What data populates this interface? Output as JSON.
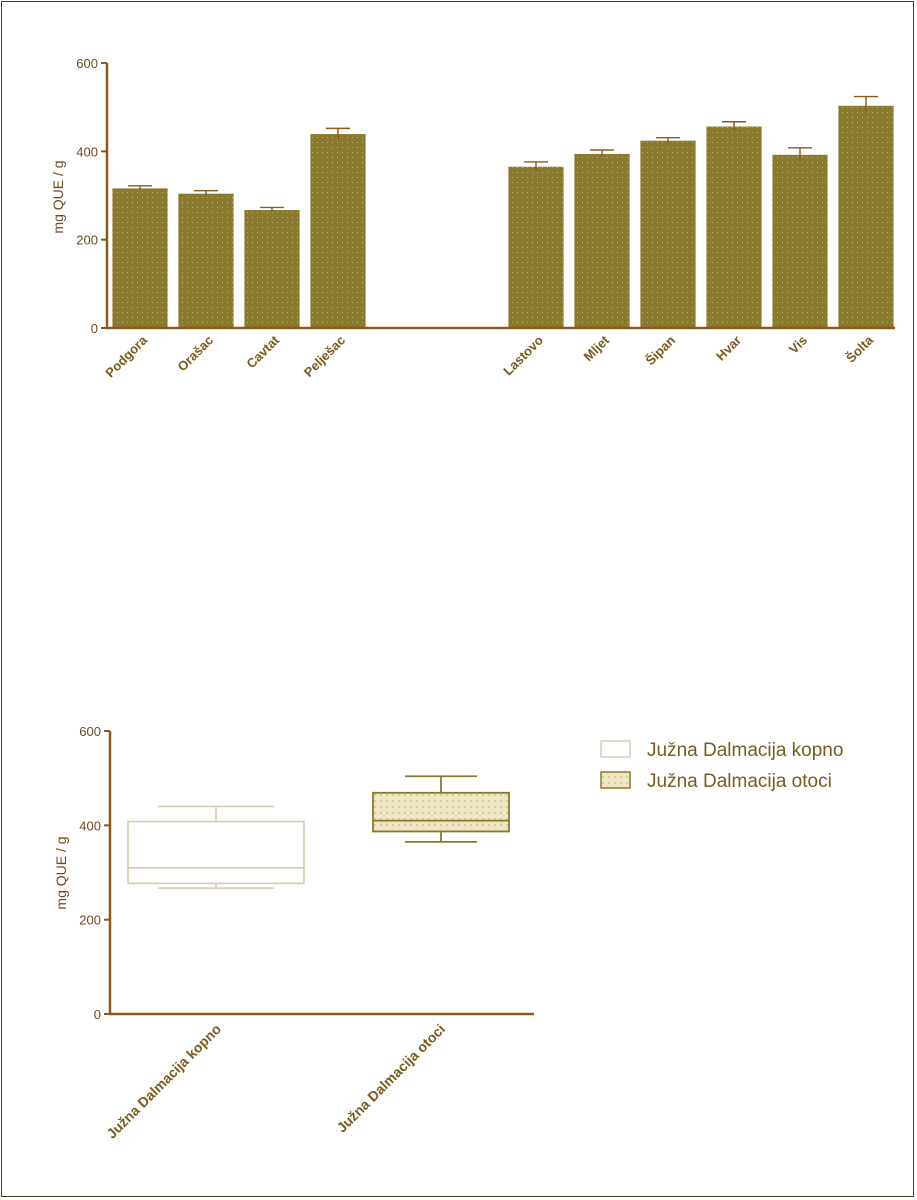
{
  "colors": {
    "bar_fill": "#8a7a2e",
    "bar_edge": "#ffffff",
    "axis": "#8b5a1b",
    "text": "#7a5a1c",
    "box_otoci_fill": "#ece3c0",
    "box_otoci_edge": "#8a7a2e",
    "box_kopno_edge": "#d9ceb0"
  },
  "chart_data": [
    {
      "type": "bar",
      "ylabel": "mg QUE / g",
      "ylim": [
        0,
        600
      ],
      "yticks": [
        0,
        200,
        400,
        600
      ],
      "categories": [
        "Podgora",
        "Orašac",
        "Cavtat",
        "Pelješac",
        "Lastovo",
        "Mljet",
        "Šipan",
        "Hvar",
        "Vis",
        "Šolta"
      ],
      "groups": [
        [
          "Podgora",
          "Orašac",
          "Cavtat",
          "Pelješac"
        ],
        [
          "Lastovo",
          "Mljet",
          "Šipan",
          "Hvar",
          "Vis",
          "Šolta"
        ]
      ],
      "values": [
        317,
        305,
        268,
        440,
        366,
        395,
        425,
        457,
        393,
        504
      ],
      "errors": [
        5,
        6,
        5,
        12,
        10,
        8,
        6,
        10,
        15,
        20
      ],
      "grid": false
    },
    {
      "type": "box",
      "ylabel": "mg QUE / g",
      "ylim": [
        0,
        600
      ],
      "yticks": [
        0,
        200,
        400,
        600
      ],
      "categories": [
        "Južna Dalmacija kopno",
        "Južna Dalmacija otoci"
      ],
      "boxes": [
        {
          "min": 267,
          "q1": 277,
          "median": 310,
          "q3": 408,
          "max": 440
        },
        {
          "min": 365,
          "q1": 387,
          "median": 410,
          "q3": 469,
          "max": 504
        }
      ],
      "legend": {
        "position": "right",
        "entries": [
          "Južna Dalmacija kopno",
          "Južna Dalmacija otoci"
        ]
      },
      "grid": false
    }
  ]
}
